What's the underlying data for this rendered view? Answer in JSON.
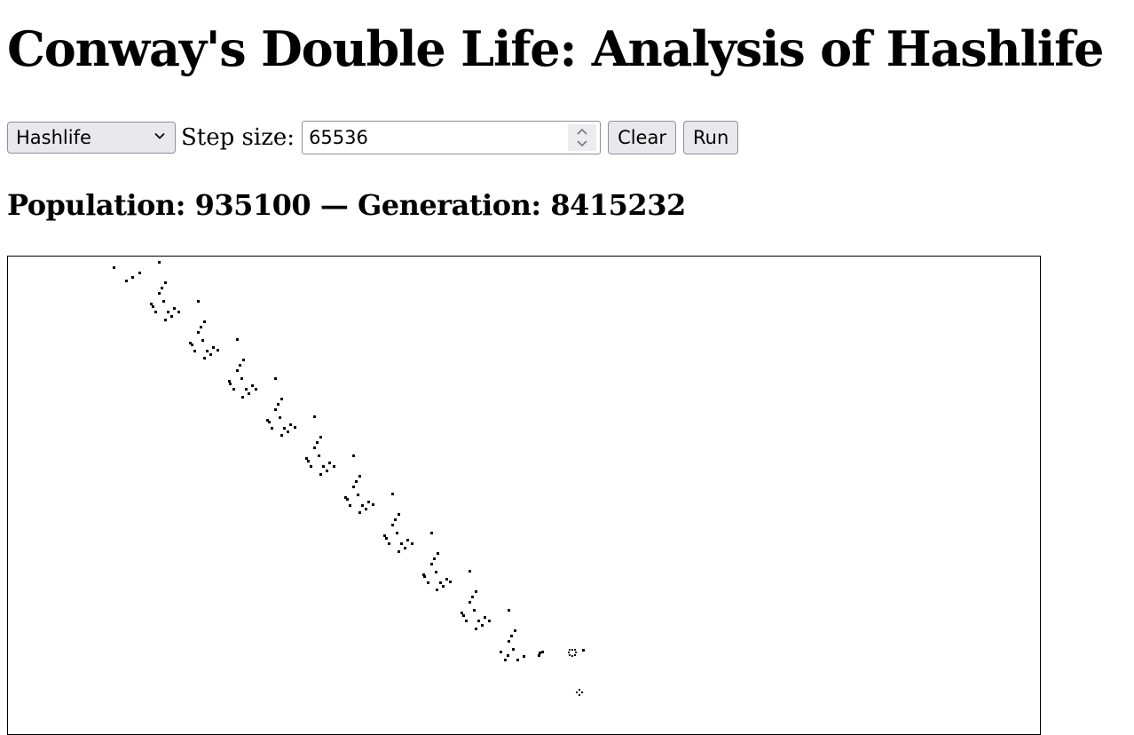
{
  "page": {
    "title": "Conway's Double Life: Analysis of Hashlife"
  },
  "controls": {
    "algorithm_selected": "Hashlife",
    "step_size_label": "Step size:",
    "step_size_value": "65536",
    "clear_label": "Clear",
    "run_label": "Run"
  },
  "status": {
    "population_label": "Population:",
    "population": "935100",
    "separator": "—",
    "generation_label": "Generation:",
    "generation": "8415232"
  },
  "colors": {
    "cell": "#000000",
    "background": "#ffffff"
  }
}
